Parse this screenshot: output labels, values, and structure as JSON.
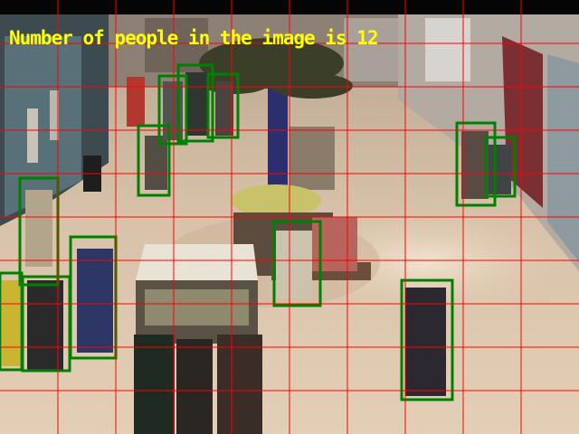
{
  "overlay": {
    "caption": "Number of people in the image is 12",
    "caption_color": "#ffff00",
    "box_color": "#008000",
    "grid_color": "#ff0000"
  },
  "detections_count": 12
}
